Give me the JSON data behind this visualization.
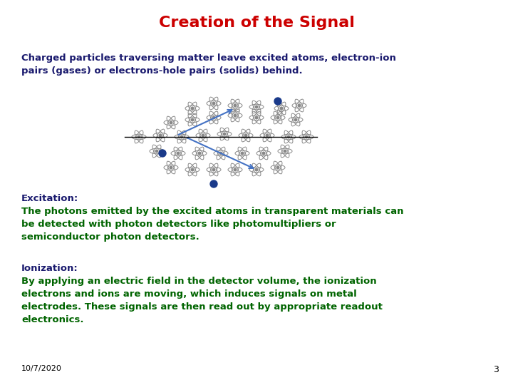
{
  "title": "Creation of the Signal",
  "title_color": "#cc0000",
  "title_fontsize": 16,
  "background_color": "#ffffff",
  "intro_text": "Charged particles traversing matter leave excited atoms, electron-ion\npairs (gases) or electrons-hole pairs (solids) behind.",
  "intro_color": "#1a1a6e",
  "intro_fontsize": 9.5,
  "excitation_label": "Excitation:",
  "excitation_label_color": "#1a1a6e",
  "excitation_text": "The photons emitted by the excited atoms in transparent materials can\nbe detected with photon detectors like photomultipliers or\nsemiconductor photon detectors.",
  "excitation_text_color": "#006400",
  "ionization_label": "Ionization:",
  "ionization_label_color": "#1a1a6e",
  "ionization_text": "By applying an electric field in the detector volume, the ionization\nelectrons and ions are moving, which induces signals on metal\nelectrodes. These signals are then read out by appropriate readout\nelectronics.",
  "ionization_text_color": "#006400",
  "footer_text": "10/7/2020",
  "footer_color": "#000000",
  "footer_fontsize": 8,
  "page_number": "3",
  "page_number_color": "#000000",
  "page_number_fontsize": 9,
  "text_fontsize": 9.5,
  "label_fontsize": 9.5,
  "atom_color": "#888888",
  "arrow_color": "#4472C4",
  "dot_color": "#1a3a8a"
}
